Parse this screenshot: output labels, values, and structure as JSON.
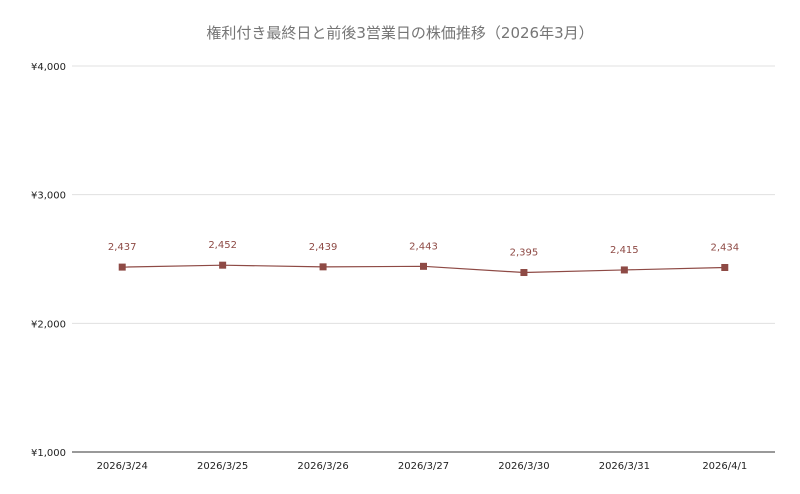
{
  "chart_data": {
    "type": "line",
    "title": "権利付き最終日と前後3営業日の株価推移（2026年3月）",
    "xlabel": "",
    "ylabel": "",
    "categories": [
      "2026/3/24",
      "2026/3/25",
      "2026/3/26",
      "2026/3/27",
      "2026/3/30",
      "2026/3/31",
      "2026/4/1"
    ],
    "series": [
      {
        "values": [
          2437,
          2452,
          2439,
          2443,
          2395,
          2415,
          2434
        ],
        "data_labels": [
          "2,437",
          "2,452",
          "2,439",
          "2,443",
          "2,395",
          "2,415",
          "2,434"
        ],
        "color": "#8e4a45",
        "marker": "square"
      }
    ],
    "ylim": [
      1000,
      4000
    ],
    "yticks": [
      1000,
      2000,
      3000,
      4000
    ],
    "ytick_labels": [
      "¥1,000",
      "¥2,000",
      "¥3,000",
      "¥4,000"
    ],
    "grid": true,
    "legend": "none"
  },
  "colors": {
    "series": "#8e4a45",
    "grid": "#e0e0e0",
    "text": "#222222",
    "title": "#757575"
  }
}
